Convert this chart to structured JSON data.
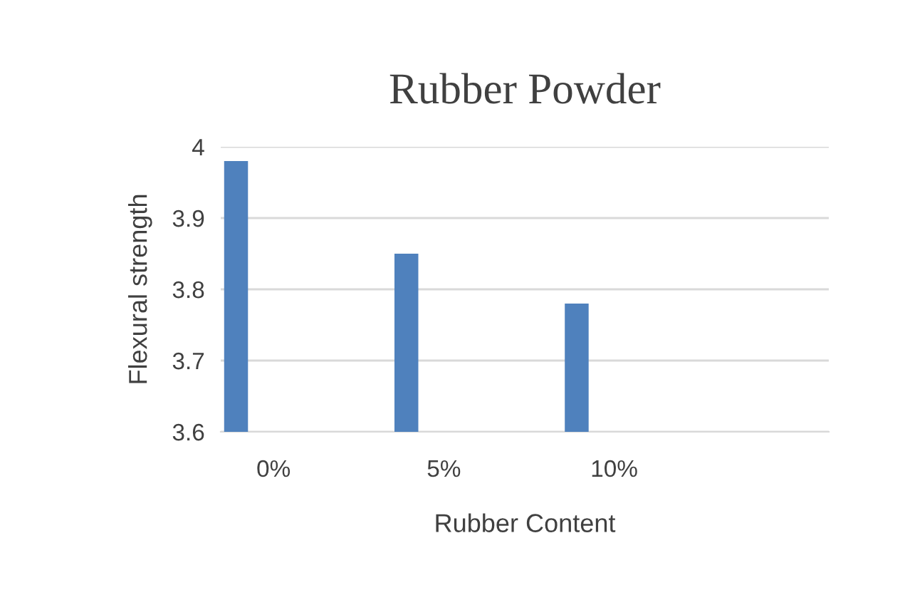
{
  "chart_data": {
    "type": "bar",
    "title": "Rubber Powder",
    "xlabel": "Rubber Content",
    "ylabel": "Flexural strength",
    "categories": [
      "0%",
      "5%",
      "10%"
    ],
    "values": [
      3.98,
      3.85,
      3.78
    ],
    "color": "#4f81bd",
    "ylim": [
      3.6,
      4
    ],
    "yticks": [
      3.6,
      3.7,
      3.8,
      3.9,
      4
    ],
    "grid": "y",
    "legend": false
  }
}
